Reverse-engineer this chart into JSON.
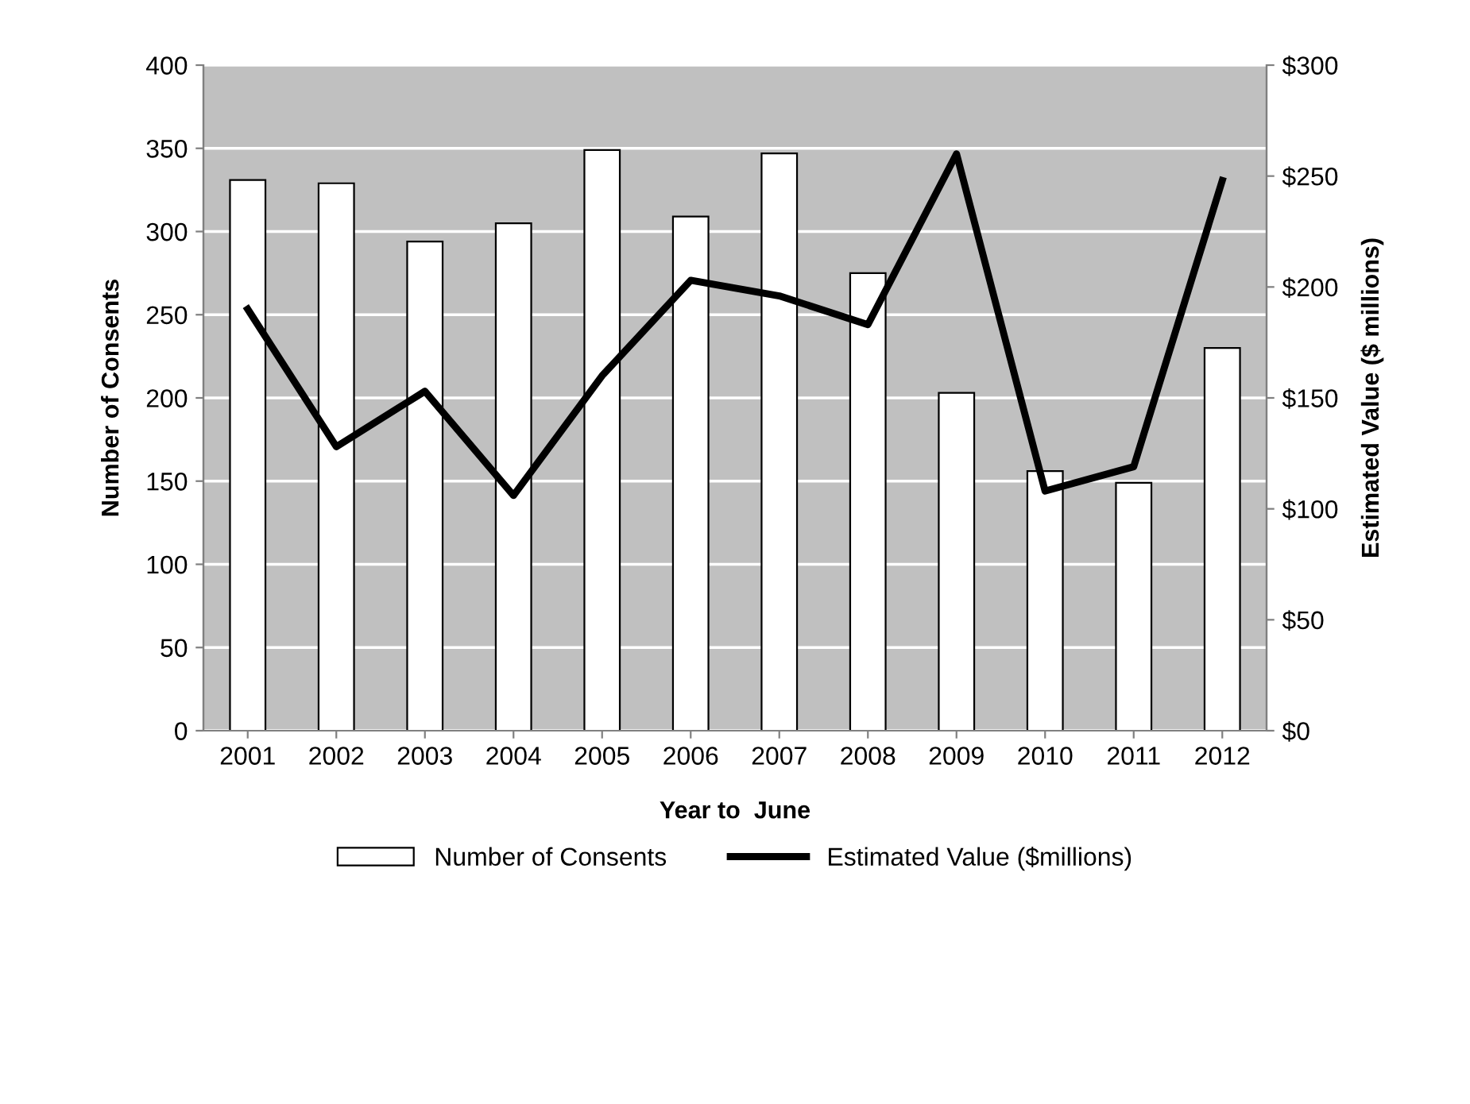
{
  "chart_data": {
    "type": "bar",
    "xlabel": "Year to  June",
    "ylabel": "Number of Consents",
    "y2label": "Estimated Value ($ millions)",
    "categories": [
      "2001",
      "2002",
      "2003",
      "2004",
      "2005",
      "2006",
      "2007",
      "2008",
      "2009",
      "2010",
      "2011",
      "2012"
    ],
    "series": [
      {
        "name": "Number of Consents",
        "color": "#ffffff",
        "values": [
          331,
          329,
          294,
          305,
          349,
          309,
          347,
          275,
          203,
          156,
          149,
          230
        ]
      },
      {
        "name": "Estimated Value ($millions)",
        "type": "line",
        "axis": "y2",
        "color": "#000000",
        "values": [
          190,
          128,
          153,
          106,
          160,
          203,
          196,
          183,
          260,
          108,
          119,
          248
        ]
      }
    ],
    "ylim": [
      0,
      400
    ],
    "yticks": [
      0,
      50,
      100,
      150,
      200,
      250,
      300,
      350,
      400
    ],
    "y2lim": [
      0,
      300
    ],
    "y2ticks": [
      {
        "value": 0,
        "label": "$0"
      },
      {
        "value": 50,
        "label": "$50"
      },
      {
        "value": 100,
        "label": "$100"
      },
      {
        "value": 150,
        "label": "$150"
      },
      {
        "value": 200,
        "label": "$200"
      },
      {
        "value": 250,
        "label": "$250"
      },
      {
        "value": 300,
        "label": "$300"
      }
    ],
    "grid": "y",
    "legend": "bottom",
    "marker": "none",
    "line_style": "solid"
  }
}
